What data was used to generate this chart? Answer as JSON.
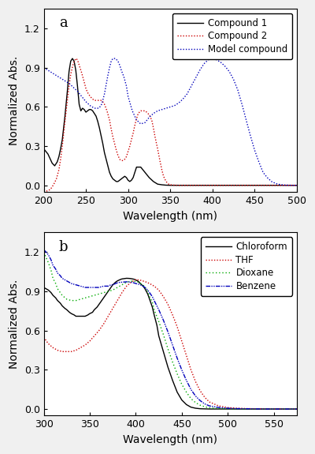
{
  "panel_a": {
    "title": "a",
    "xlabel": "Wavelength (nm)",
    "ylabel": "Normalized Abs.",
    "xlim": [
      200,
      500
    ],
    "ylim": [
      -0.05,
      1.35
    ],
    "yticks": [
      0.0,
      0.3,
      0.6,
      0.9,
      1.2
    ],
    "xticks": [
      200,
      250,
      300,
      350,
      400,
      450,
      500
    ],
    "lines": [
      {
        "label": "Compound 1",
        "color": "#000000",
        "linestyle": "solid",
        "linewidth": 1.0,
        "x": [
          200,
          205,
          210,
          213,
          216,
          218,
          220,
          222,
          225,
          228,
          230,
          232,
          234,
          236,
          238,
          240,
          242,
          244,
          246,
          248,
          250,
          252,
          254,
          256,
          258,
          260,
          262,
          264,
          266,
          268,
          270,
          272,
          274,
          276,
          278,
          280,
          282,
          284,
          286,
          288,
          290,
          292,
          294,
          296,
          298,
          300,
          302,
          304,
          306,
          308,
          310,
          315,
          320,
          325,
          330,
          335,
          340,
          345,
          350,
          360,
          370,
          380,
          390,
          400,
          450,
          500
        ],
        "y": [
          0.28,
          0.24,
          0.17,
          0.15,
          0.18,
          0.22,
          0.28,
          0.35,
          0.52,
          0.72,
          0.87,
          0.95,
          0.97,
          0.95,
          0.88,
          0.76,
          0.62,
          0.57,
          0.59,
          0.58,
          0.56,
          0.57,
          0.58,
          0.58,
          0.57,
          0.55,
          0.53,
          0.49,
          0.44,
          0.38,
          0.32,
          0.25,
          0.2,
          0.15,
          0.1,
          0.07,
          0.05,
          0.04,
          0.03,
          0.03,
          0.04,
          0.05,
          0.06,
          0.07,
          0.06,
          0.04,
          0.03,
          0.04,
          0.06,
          0.1,
          0.14,
          0.14,
          0.1,
          0.06,
          0.03,
          0.01,
          0.005,
          0.002,
          0.001,
          0.001,
          0.001,
          0.001,
          0.001,
          0.001,
          0.001,
          0.001
        ]
      },
      {
        "label": "Compound 2",
        "color": "#cc0000",
        "linestyle": "dotted",
        "linewidth": 1.0,
        "x": [
          200,
          205,
          208,
          210,
          212,
          215,
          218,
          220,
          222,
          225,
          228,
          230,
          232,
          235,
          238,
          240,
          242,
          245,
          248,
          250,
          252,
          255,
          258,
          260,
          262,
          265,
          268,
          270,
          272,
          275,
          278,
          280,
          282,
          284,
          286,
          288,
          290,
          292,
          294,
          296,
          298,
          300,
          302,
          304,
          306,
          308,
          310,
          312,
          315,
          318,
          320,
          322,
          325,
          328,
          330,
          332,
          335,
          338,
          340,
          342,
          345,
          348,
          350,
          355,
          360,
          365,
          370,
          375,
          380,
          390,
          400,
          450,
          500
        ],
        "y": [
          -0.05,
          -0.04,
          -0.03,
          -0.01,
          0.01,
          0.05,
          0.12,
          0.2,
          0.3,
          0.48,
          0.65,
          0.76,
          0.85,
          0.93,
          0.97,
          0.96,
          0.92,
          0.86,
          0.79,
          0.74,
          0.71,
          0.68,
          0.66,
          0.65,
          0.65,
          0.65,
          0.65,
          0.64,
          0.62,
          0.57,
          0.5,
          0.43,
          0.37,
          0.32,
          0.27,
          0.23,
          0.2,
          0.19,
          0.19,
          0.2,
          0.22,
          0.26,
          0.3,
          0.35,
          0.4,
          0.46,
          0.51,
          0.55,
          0.57,
          0.57,
          0.57,
          0.56,
          0.54,
          0.5,
          0.44,
          0.37,
          0.28,
          0.18,
          0.12,
          0.07,
          0.03,
          0.01,
          0.005,
          0.002,
          0.001,
          0.001,
          0.001,
          0.001,
          0.001,
          0.001,
          0.001,
          0.001,
          0.001
        ]
      },
      {
        "label": "Model compound",
        "color": "#0000bb",
        "linestyle": "dotted",
        "linewidth": 1.0,
        "x": [
          200,
          205,
          210,
          215,
          220,
          225,
          230,
          235,
          240,
          245,
          250,
          255,
          260,
          265,
          268,
          270,
          272,
          274,
          276,
          278,
          280,
          282,
          285,
          288,
          290,
          292,
          295,
          298,
          300,
          305,
          310,
          315,
          320,
          325,
          330,
          335,
          340,
          345,
          350,
          355,
          360,
          365,
          370,
          375,
          380,
          385,
          390,
          395,
          400,
          405,
          410,
          415,
          420,
          425,
          430,
          435,
          440,
          445,
          450,
          455,
          460,
          465,
          470,
          475,
          480,
          485,
          490,
          495,
          500
        ],
        "y": [
          0.9,
          0.88,
          0.86,
          0.84,
          0.82,
          0.8,
          0.78,
          0.75,
          0.72,
          0.68,
          0.64,
          0.61,
          0.59,
          0.59,
          0.61,
          0.65,
          0.7,
          0.77,
          0.84,
          0.9,
          0.95,
          0.97,
          0.97,
          0.95,
          0.92,
          0.88,
          0.83,
          0.76,
          0.68,
          0.57,
          0.5,
          0.47,
          0.48,
          0.52,
          0.55,
          0.57,
          0.58,
          0.59,
          0.6,
          0.61,
          0.63,
          0.66,
          0.7,
          0.76,
          0.82,
          0.88,
          0.93,
          0.96,
          0.97,
          0.96,
          0.94,
          0.91,
          0.87,
          0.81,
          0.73,
          0.62,
          0.5,
          0.38,
          0.27,
          0.18,
          0.1,
          0.06,
          0.03,
          0.015,
          0.007,
          0.003,
          0.002,
          0.001,
          0.001
        ]
      }
    ]
  },
  "panel_b": {
    "title": "b",
    "xlabel": "Wavelength (nm)",
    "ylabel": "Normalized Abs.",
    "xlim": [
      300,
      575
    ],
    "ylim": [
      -0.05,
      1.35
    ],
    "yticks": [
      0.0,
      0.3,
      0.6,
      0.9,
      1.2
    ],
    "xticks": [
      300,
      350,
      400,
      450,
      500,
      550
    ],
    "lines": [
      {
        "label": "Chloroform",
        "color": "#000000",
        "linestyle": "solid",
        "linewidth": 1.0,
        "x": [
          300,
          305,
          308,
          310,
          313,
          315,
          318,
          320,
          323,
          325,
          328,
          330,
          333,
          335,
          338,
          340,
          342,
          345,
          348,
          350,
          353,
          355,
          358,
          360,
          363,
          365,
          368,
          370,
          373,
          375,
          378,
          380,
          383,
          385,
          388,
          390,
          393,
          395,
          398,
          400,
          403,
          405,
          408,
          410,
          413,
          415,
          418,
          420,
          423,
          425,
          430,
          435,
          440,
          445,
          450,
          455,
          460,
          465,
          470,
          475,
          480,
          490,
          500,
          510,
          520,
          530,
          540,
          550,
          560,
          570,
          575
        ],
        "y": [
          0.93,
          0.91,
          0.89,
          0.87,
          0.85,
          0.83,
          0.81,
          0.79,
          0.77,
          0.76,
          0.74,
          0.73,
          0.72,
          0.71,
          0.71,
          0.71,
          0.71,
          0.71,
          0.72,
          0.73,
          0.74,
          0.76,
          0.78,
          0.8,
          0.83,
          0.85,
          0.88,
          0.9,
          0.93,
          0.95,
          0.97,
          0.98,
          0.99,
          0.995,
          0.998,
          1.0,
          0.999,
          0.997,
          0.993,
          0.987,
          0.975,
          0.96,
          0.94,
          0.92,
          0.88,
          0.84,
          0.78,
          0.72,
          0.64,
          0.56,
          0.44,
          0.32,
          0.22,
          0.13,
          0.07,
          0.035,
          0.015,
          0.007,
          0.003,
          0.002,
          0.001,
          0.001,
          0.001,
          0.001,
          0.001,
          0.001,
          0.001,
          0.001,
          0.001,
          0.001,
          0.001
        ]
      },
      {
        "label": "THF",
        "color": "#cc0000",
        "linestyle": "dotted",
        "linewidth": 1.0,
        "x": [
          300,
          305,
          310,
          315,
          320,
          325,
          330,
          335,
          340,
          345,
          350,
          355,
          360,
          365,
          370,
          375,
          380,
          385,
          390,
          395,
          400,
          405,
          410,
          415,
          420,
          425,
          430,
          435,
          440,
          445,
          450,
          455,
          460,
          465,
          470,
          475,
          480,
          490,
          500,
          510,
          520,
          530,
          540,
          550,
          560,
          570,
          575
        ],
        "y": [
          0.55,
          0.5,
          0.47,
          0.45,
          0.44,
          0.44,
          0.44,
          0.45,
          0.47,
          0.49,
          0.52,
          0.56,
          0.6,
          0.65,
          0.71,
          0.77,
          0.83,
          0.89,
          0.94,
          0.97,
          0.99,
          0.985,
          0.975,
          0.96,
          0.94,
          0.91,
          0.86,
          0.8,
          0.72,
          0.63,
          0.52,
          0.41,
          0.3,
          0.21,
          0.14,
          0.09,
          0.055,
          0.025,
          0.012,
          0.007,
          0.004,
          0.003,
          0.002,
          0.001,
          0.001,
          0.001,
          0.001
        ]
      },
      {
        "label": "Dioxane",
        "color": "#00aa00",
        "linestyle": "dotted",
        "linewidth": 1.0,
        "x": [
          300,
          305,
          308,
          310,
          313,
          315,
          318,
          320,
          325,
          330,
          335,
          340,
          345,
          350,
          355,
          360,
          365,
          370,
          375,
          380,
          385,
          390,
          393,
          395,
          398,
          400,
          403,
          405,
          408,
          410,
          413,
          415,
          418,
          420,
          425,
          430,
          435,
          440,
          445,
          450,
          455,
          460,
          465,
          470,
          475,
          480,
          490,
          500,
          510,
          520,
          530,
          540,
          550,
          560,
          570,
          575
        ],
        "y": [
          1.2,
          1.12,
          1.06,
          1.0,
          0.96,
          0.92,
          0.89,
          0.87,
          0.84,
          0.83,
          0.83,
          0.84,
          0.85,
          0.86,
          0.87,
          0.88,
          0.89,
          0.9,
          0.91,
          0.93,
          0.95,
          0.97,
          0.975,
          0.978,
          0.978,
          0.975,
          0.97,
          0.96,
          0.95,
          0.93,
          0.9,
          0.86,
          0.82,
          0.76,
          0.67,
          0.57,
          0.46,
          0.36,
          0.27,
          0.19,
          0.13,
          0.08,
          0.05,
          0.03,
          0.018,
          0.01,
          0.005,
          0.003,
          0.002,
          0.001,
          0.001,
          0.001,
          0.001,
          0.001,
          0.001,
          0.001
        ]
      },
      {
        "label": "Benzene",
        "color": "#0000bb",
        "linestyle": "dashdot",
        "linewidth": 1.0,
        "x": [
          300,
          305,
          308,
          310,
          313,
          315,
          318,
          320,
          325,
          330,
          335,
          340,
          345,
          350,
          355,
          360,
          365,
          368,
          370,
          373,
          375,
          378,
          380,
          383,
          385,
          388,
          390,
          393,
          395,
          398,
          400,
          403,
          405,
          408,
          410,
          413,
          415,
          418,
          420,
          425,
          430,
          435,
          440,
          445,
          450,
          455,
          460,
          465,
          470,
          475,
          480,
          490,
          500,
          510,
          520,
          530,
          540,
          550,
          560,
          570,
          575
        ],
        "y": [
          1.22,
          1.18,
          1.14,
          1.1,
          1.07,
          1.04,
          1.02,
          1.0,
          0.98,
          0.96,
          0.95,
          0.94,
          0.93,
          0.93,
          0.93,
          0.93,
          0.94,
          0.94,
          0.94,
          0.95,
          0.95,
          0.96,
          0.965,
          0.97,
          0.97,
          0.972,
          0.973,
          0.972,
          0.97,
          0.965,
          0.96,
          0.955,
          0.95,
          0.94,
          0.93,
          0.91,
          0.89,
          0.86,
          0.83,
          0.76,
          0.68,
          0.59,
          0.49,
          0.39,
          0.3,
          0.22,
          0.15,
          0.1,
          0.065,
          0.04,
          0.025,
          0.013,
          0.007,
          0.004,
          0.003,
          0.002,
          0.001,
          0.001,
          0.001,
          0.001,
          0.001
        ]
      }
    ]
  },
  "figure_bg": "#f0f0f0",
  "axes_bg": "#ffffff",
  "font_size": 9,
  "label_font_size": 10,
  "legend_font_size": 8.5,
  "tick_label_size": 9
}
